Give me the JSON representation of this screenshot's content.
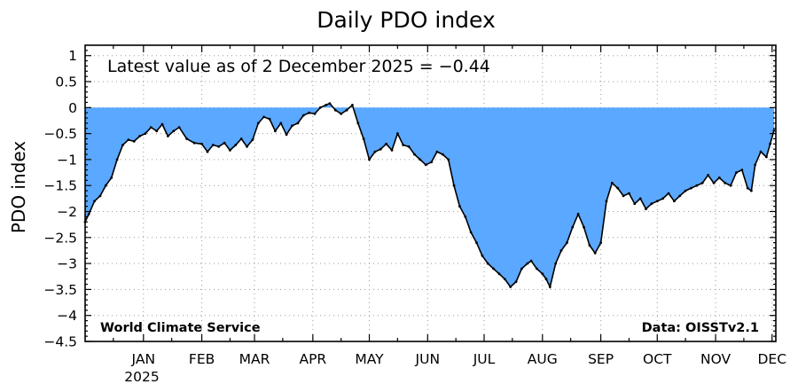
{
  "chart_data": {
    "type": "area",
    "title": "Daily PDO index",
    "xlabel": "",
    "ylabel": "PDO index",
    "ylim": [
      -4.5,
      1.2
    ],
    "y_ticks": [
      1,
      0.5,
      0,
      -0.5,
      -1,
      -1.5,
      -2,
      -2.5,
      -3,
      -3.5,
      -4,
      -4.5
    ],
    "y_tick_labels": [
      "1",
      "0.5",
      "0",
      "−0.5",
      "−1",
      "−1.5",
      "−2",
      "−2.5",
      "−3",
      "−3.5",
      "−4",
      "−4.5"
    ],
    "x_range": [
      "2024-12-01",
      "2025-12-03"
    ],
    "x_ticks": [
      {
        "date": "2025-01-01",
        "label": "JAN"
      },
      {
        "date": "2025-02-01",
        "label": "FEB"
      },
      {
        "date": "2025-03-01",
        "label": "MAR"
      },
      {
        "date": "2025-04-01",
        "label": "APR"
      },
      {
        "date": "2025-05-01",
        "label": "MAY"
      },
      {
        "date": "2025-06-01",
        "label": "JUN"
      },
      {
        "date": "2025-07-01",
        "label": "JUL"
      },
      {
        "date": "2025-08-01",
        "label": "AUG"
      },
      {
        "date": "2025-09-01",
        "label": "SEP"
      },
      {
        "date": "2025-10-01",
        "label": "OCT"
      },
      {
        "date": "2025-11-01",
        "label": "NOV"
      },
      {
        "date": "2025-12-01",
        "label": "DEC"
      }
    ],
    "year_label": "2025",
    "grid": true,
    "fill_color": "#5aa8ff",
    "line_color": "#000000",
    "annotations": {
      "latest": "Latest value as of 2 December 2025 = −0.44",
      "credit": "World Climate Service",
      "source": "Data: OISSTv2.1"
    },
    "series": [
      {
        "points": [
          [
            "2024-12-01",
            -2.2
          ],
          [
            "2024-12-03",
            -2.05
          ],
          [
            "2024-12-06",
            -1.8
          ],
          [
            "2024-12-09",
            -1.7
          ],
          [
            "2024-12-12",
            -1.5
          ],
          [
            "2024-12-15",
            -1.35
          ],
          [
            "2024-12-18",
            -1.0
          ],
          [
            "2024-12-21",
            -0.72
          ],
          [
            "2024-12-24",
            -0.62
          ],
          [
            "2024-12-27",
            -0.65
          ],
          [
            "2024-12-30",
            -0.55
          ],
          [
            "2025-01-02",
            -0.5
          ],
          [
            "2025-01-05",
            -0.38
          ],
          [
            "2025-01-08",
            -0.45
          ],
          [
            "2025-01-11",
            -0.32
          ],
          [
            "2025-01-14",
            -0.55
          ],
          [
            "2025-01-17",
            -0.45
          ],
          [
            "2025-01-20",
            -0.38
          ],
          [
            "2025-01-24",
            -0.6
          ],
          [
            "2025-01-28",
            -0.68
          ],
          [
            "2025-02-01",
            -0.7
          ],
          [
            "2025-02-04",
            -0.85
          ],
          [
            "2025-02-07",
            -0.72
          ],
          [
            "2025-02-10",
            -0.75
          ],
          [
            "2025-02-13",
            -0.68
          ],
          [
            "2025-02-16",
            -0.82
          ],
          [
            "2025-02-19",
            -0.72
          ],
          [
            "2025-02-22",
            -0.6
          ],
          [
            "2025-02-25",
            -0.75
          ],
          [
            "2025-02-28",
            -0.62
          ],
          [
            "2025-03-03",
            -0.3
          ],
          [
            "2025-03-06",
            -0.18
          ],
          [
            "2025-03-09",
            -0.22
          ],
          [
            "2025-03-12",
            -0.45
          ],
          [
            "2025-03-15",
            -0.3
          ],
          [
            "2025-03-18",
            -0.52
          ],
          [
            "2025-03-21",
            -0.35
          ],
          [
            "2025-03-24",
            -0.3
          ],
          [
            "2025-03-27",
            -0.15
          ],
          [
            "2025-03-30",
            -0.1
          ],
          [
            "2025-04-02",
            -0.12
          ],
          [
            "2025-04-05",
            0.0
          ],
          [
            "2025-04-08",
            0.05
          ],
          [
            "2025-04-10",
            0.08
          ],
          [
            "2025-04-13",
            -0.05
          ],
          [
            "2025-04-16",
            -0.12
          ],
          [
            "2025-04-19",
            -0.05
          ],
          [
            "2025-04-22",
            0.05
          ],
          [
            "2025-04-25",
            -0.3
          ],
          [
            "2025-04-28",
            -0.6
          ],
          [
            "2025-05-01",
            -1.0
          ],
          [
            "2025-05-04",
            -0.85
          ],
          [
            "2025-05-07",
            -0.8
          ],
          [
            "2025-05-10",
            -0.7
          ],
          [
            "2025-05-13",
            -0.82
          ],
          [
            "2025-05-16",
            -0.5
          ],
          [
            "2025-05-19",
            -0.72
          ],
          [
            "2025-05-22",
            -0.75
          ],
          [
            "2025-05-25",
            -0.9
          ],
          [
            "2025-05-28",
            -1.0
          ],
          [
            "2025-05-31",
            -1.1
          ],
          [
            "2025-06-03",
            -1.05
          ],
          [
            "2025-06-06",
            -0.85
          ],
          [
            "2025-06-09",
            -0.9
          ],
          [
            "2025-06-12",
            -1.0
          ],
          [
            "2025-06-15",
            -1.5
          ],
          [
            "2025-06-18",
            -1.9
          ],
          [
            "2025-06-21",
            -2.1
          ],
          [
            "2025-06-24",
            -2.4
          ],
          [
            "2025-06-27",
            -2.6
          ],
          [
            "2025-06-30",
            -2.85
          ],
          [
            "2025-07-03",
            -3.0
          ],
          [
            "2025-07-06",
            -3.1
          ],
          [
            "2025-07-09",
            -3.2
          ],
          [
            "2025-07-12",
            -3.3
          ],
          [
            "2025-07-15",
            -3.45
          ],
          [
            "2025-07-18",
            -3.35
          ],
          [
            "2025-07-21",
            -3.1
          ],
          [
            "2025-07-24",
            -3.0
          ],
          [
            "2025-07-26",
            -2.95
          ],
          [
            "2025-07-29",
            -3.1
          ],
          [
            "2025-08-01",
            -3.2
          ],
          [
            "2025-08-03",
            -3.3
          ],
          [
            "2025-08-05",
            -3.45
          ],
          [
            "2025-08-08",
            -3.0
          ],
          [
            "2025-08-11",
            -2.75
          ],
          [
            "2025-08-14",
            -2.6
          ],
          [
            "2025-08-17",
            -2.3
          ],
          [
            "2025-08-20",
            -2.05
          ],
          [
            "2025-08-23",
            -2.3
          ],
          [
            "2025-08-26",
            -2.65
          ],
          [
            "2025-08-29",
            -2.8
          ],
          [
            "2025-09-01",
            -2.6
          ],
          [
            "2025-09-04",
            -1.8
          ],
          [
            "2025-09-07",
            -1.45
          ],
          [
            "2025-09-10",
            -1.55
          ],
          [
            "2025-09-13",
            -1.7
          ],
          [
            "2025-09-16",
            -1.65
          ],
          [
            "2025-09-19",
            -1.85
          ],
          [
            "2025-09-22",
            -1.75
          ],
          [
            "2025-09-25",
            -1.95
          ],
          [
            "2025-09-28",
            -1.85
          ],
          [
            "2025-10-01",
            -1.8
          ],
          [
            "2025-10-04",
            -1.75
          ],
          [
            "2025-10-07",
            -1.65
          ],
          [
            "2025-10-10",
            -1.8
          ],
          [
            "2025-10-13",
            -1.7
          ],
          [
            "2025-10-16",
            -1.6
          ],
          [
            "2025-10-19",
            -1.55
          ],
          [
            "2025-10-22",
            -1.5
          ],
          [
            "2025-10-25",
            -1.45
          ],
          [
            "2025-10-28",
            -1.3
          ],
          [
            "2025-10-31",
            -1.45
          ],
          [
            "2025-11-03",
            -1.35
          ],
          [
            "2025-11-06",
            -1.45
          ],
          [
            "2025-11-09",
            -1.5
          ],
          [
            "2025-11-12",
            -1.25
          ],
          [
            "2025-11-15",
            -1.2
          ],
          [
            "2025-11-18",
            -1.55
          ],
          [
            "2025-11-20",
            -1.6
          ],
          [
            "2025-11-22",
            -1.1
          ],
          [
            "2025-11-25",
            -0.85
          ],
          [
            "2025-11-28",
            -0.95
          ],
          [
            "2025-11-30",
            -0.7
          ],
          [
            "2025-12-02",
            -0.44
          ]
        ]
      }
    ]
  }
}
